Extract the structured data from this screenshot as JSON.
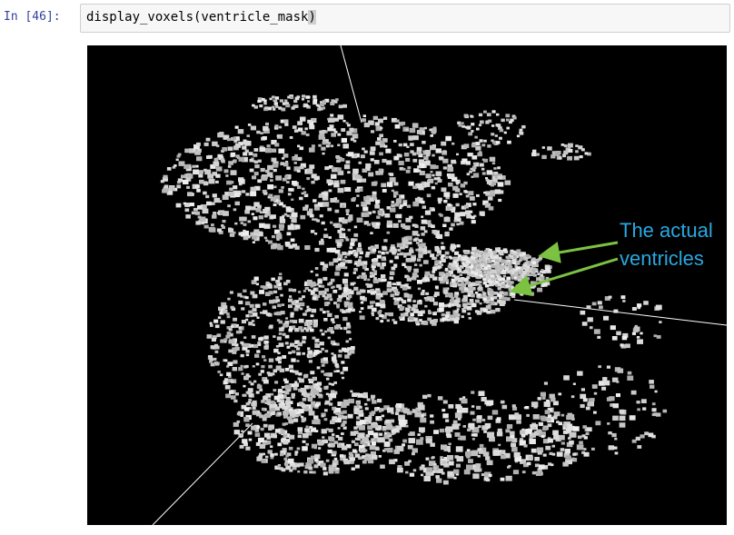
{
  "cell": {
    "prompt": "In [46]:",
    "code_main": "display_voxels(ventricle_mask",
    "code_close": ")"
  },
  "annotation": {
    "line1": "The actual",
    "line2": "ventricles",
    "arrow_color": "#7cc242",
    "text_color": "#29a8e0"
  },
  "colors": {
    "canvas_bg": "#000000",
    "voxel": "#c8c8c8",
    "axis_line": "#ffffff"
  }
}
